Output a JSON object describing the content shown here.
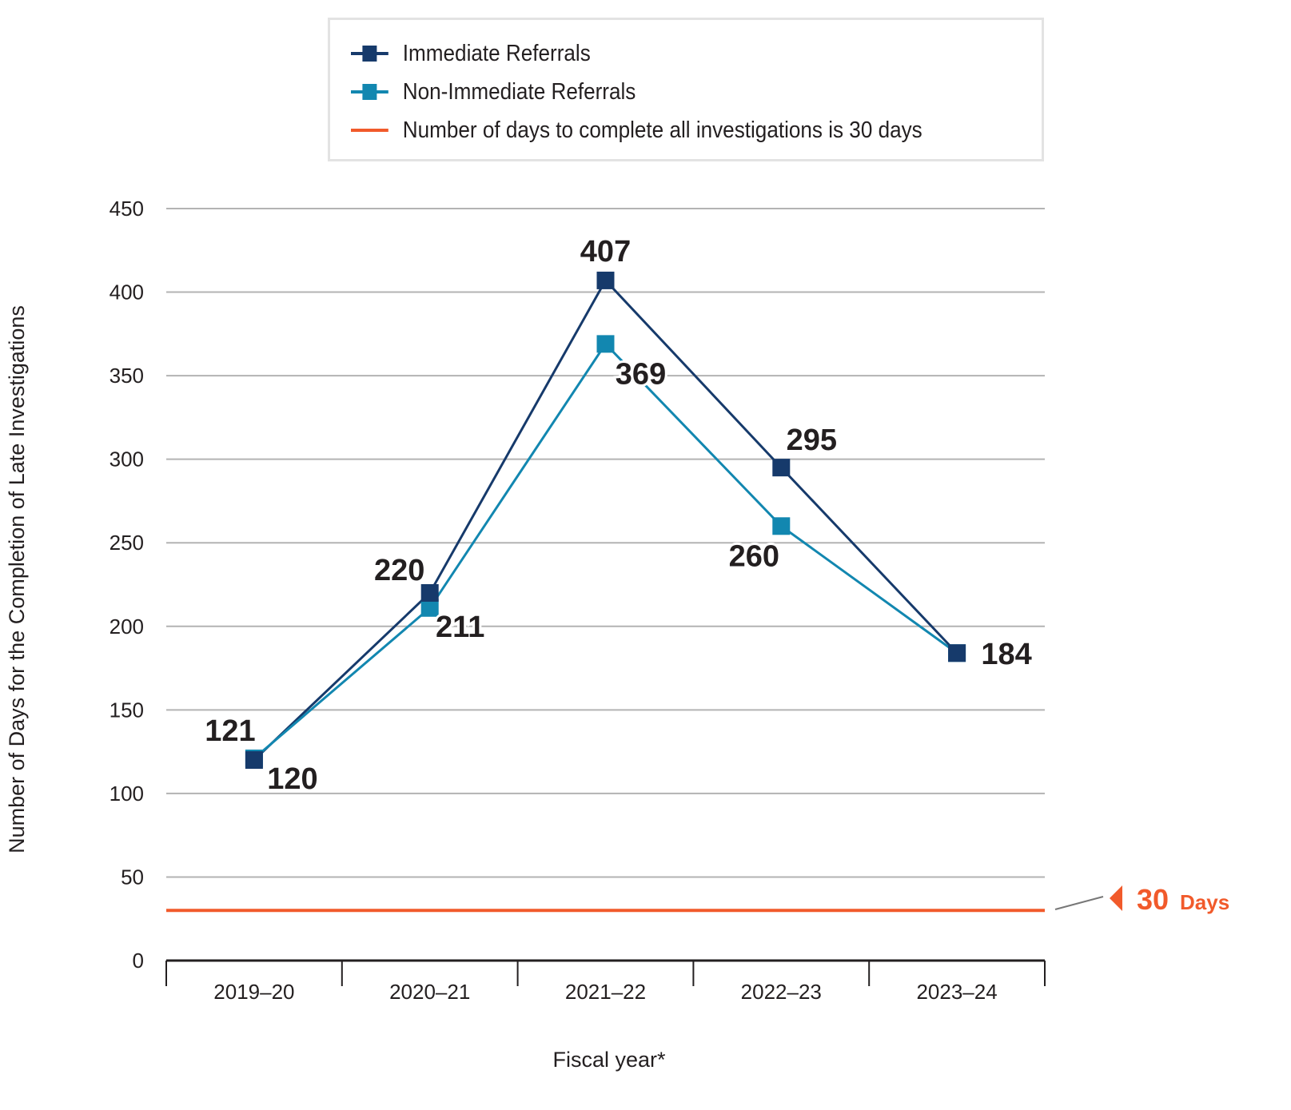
{
  "chart_data": {
    "type": "line",
    "title": "",
    "xlabel": "Fiscal year*",
    "ylabel": "Number of Days for the Completion of Late Investigations",
    "categories": [
      "2019–20",
      "2020–21",
      "2021–22",
      "2022–23",
      "2023–24"
    ],
    "ylim": [
      0,
      450
    ],
    "yticks": [
      0,
      50,
      100,
      150,
      200,
      250,
      300,
      350,
      400,
      450
    ],
    "grid": true,
    "legend_position": "top",
    "series": [
      {
        "name": "Immediate Referrals",
        "color": "#163a6b",
        "values": [
          120,
          220,
          407,
          295,
          184
        ]
      },
      {
        "name": "Non-Immediate Referrals",
        "color": "#1287b0",
        "values": [
          121,
          211,
          369,
          260,
          184
        ]
      }
    ],
    "reference_line": {
      "name": "Number of days to complete all investigations is 30 days",
      "value": 30,
      "color": "#f15a2b",
      "annotation_value": "30",
      "annotation_unit": "Days"
    },
    "data_labels": [
      "121",
      "120",
      "220",
      "211",
      "407",
      "369",
      "295",
      "260",
      "184"
    ]
  }
}
